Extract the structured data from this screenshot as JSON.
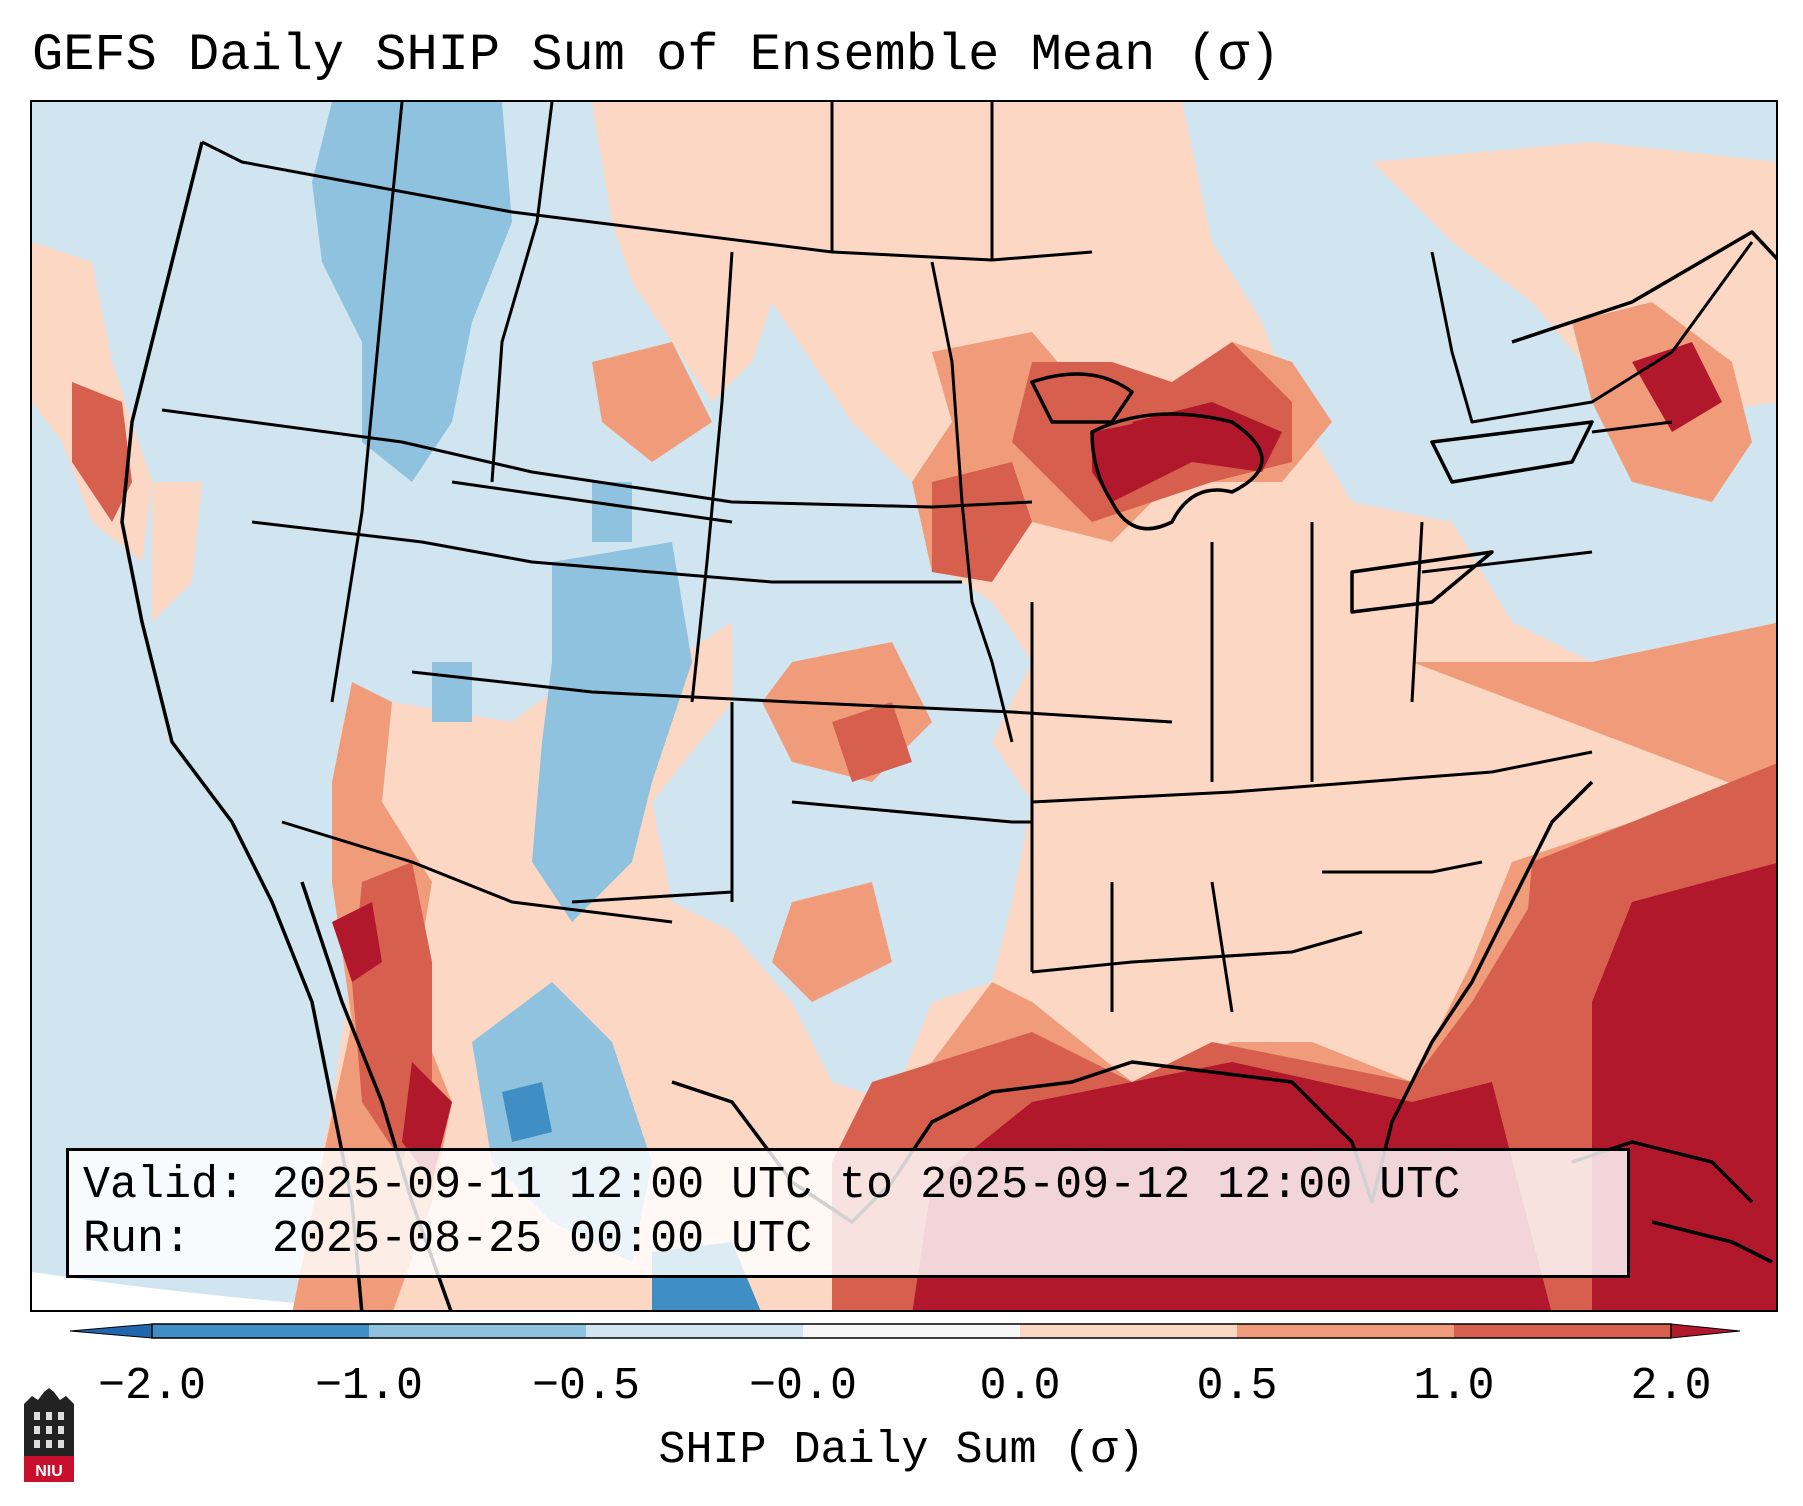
{
  "title": "GEFS Daily SHIP Sum of Ensemble Mean (σ)",
  "info": {
    "valid_label": "Valid:",
    "valid_value": "2025-09-11 12:00 UTC to 2025-09-12 12:00 UTC",
    "run_label": "Run:",
    "run_value": "2025-08-25 00:00 UTC"
  },
  "colorbar": {
    "label": "SHIP Daily Sum (σ)",
    "ticks": [
      "−2.0",
      "−1.0",
      "−0.5",
      "−0.0",
      "0.0",
      "0.5",
      "1.0",
      "2.0"
    ],
    "colors": [
      "#2166ac",
      "#3f8fc4",
      "#8fc2de",
      "#d1e5f0",
      "#f7f7f7",
      "#fbd7c4",
      "#f09c7b",
      "#d6604d",
      "#b2182b"
    ]
  },
  "logo": {
    "text": "NIU"
  }
}
